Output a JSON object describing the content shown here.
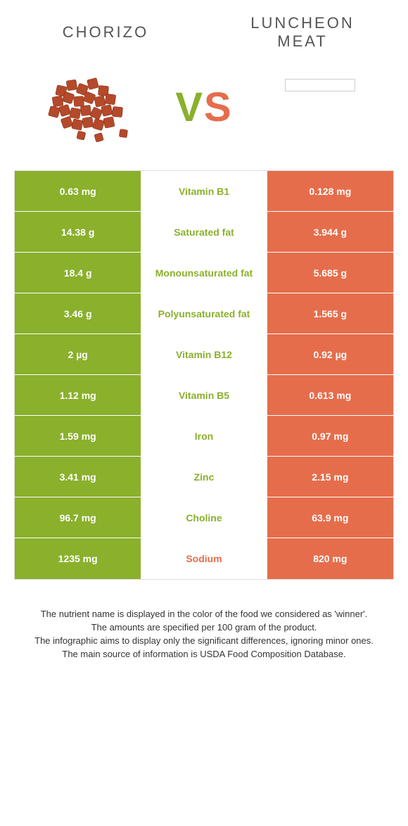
{
  "header": {
    "left_title": "Chorizo",
    "right_title": "Luncheon Meat"
  },
  "vs": {
    "v": "V",
    "s": "S"
  },
  "colors": {
    "left": "#8ab02c",
    "right": "#e66d4b",
    "mid_bg": "#ffffff",
    "row_border": "#ffffff",
    "title_text": "#555555",
    "footnote_text": "#333333"
  },
  "table": {
    "rows": [
      {
        "left": "0.63 mg",
        "label": "Vitamin B1",
        "right": "0.128 mg",
        "winner": "left"
      },
      {
        "left": "14.38 g",
        "label": "Saturated fat",
        "right": "3.944 g",
        "winner": "left"
      },
      {
        "left": "18.4 g",
        "label": "Monounsaturated fat",
        "right": "5.685 g",
        "winner": "left"
      },
      {
        "left": "3.46 g",
        "label": "Polyunsaturated fat",
        "right": "1.565 g",
        "winner": "left"
      },
      {
        "left": "2 µg",
        "label": "Vitamin B12",
        "right": "0.92 µg",
        "winner": "left"
      },
      {
        "left": "1.12 mg",
        "label": "Vitamin B5",
        "right": "0.613 mg",
        "winner": "left"
      },
      {
        "left": "1.59 mg",
        "label": "Iron",
        "right": "0.97 mg",
        "winner": "left"
      },
      {
        "left": "3.41 mg",
        "label": "Zinc",
        "right": "2.15 mg",
        "winner": "left"
      },
      {
        "left": "96.7 mg",
        "label": "Choline",
        "right": "63.9 mg",
        "winner": "left"
      },
      {
        "left": "1235 mg",
        "label": "Sodium",
        "right": "820 mg",
        "winner": "right"
      }
    ]
  },
  "footnotes": [
    "The nutrient name is displayed in the color of the food we considered as 'winner'.",
    "The amounts are specified per 100 gram of the product.",
    "The infographic aims to display only the significant differences, ignoring minor ones.",
    "The main source of information is USDA Food Composition Database."
  ]
}
